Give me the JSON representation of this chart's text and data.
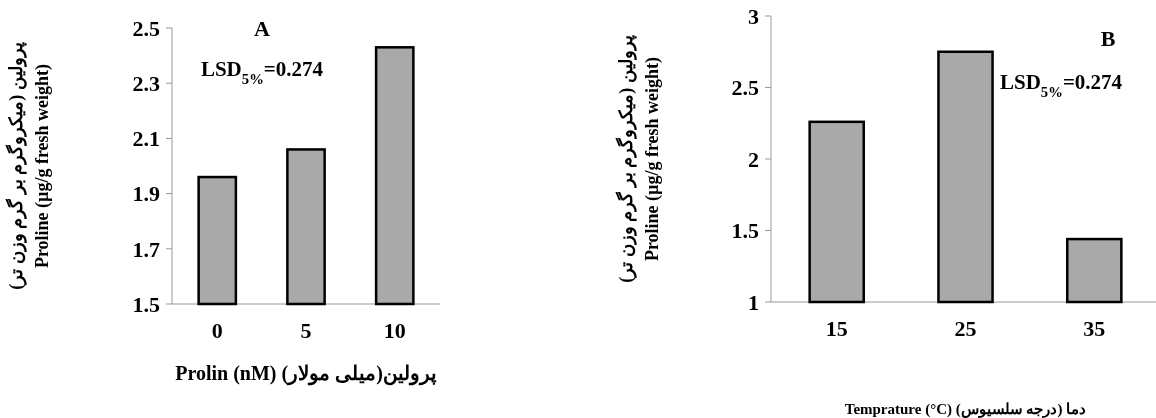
{
  "chart_data": [
    {
      "type": "bar",
      "title": "A",
      "categories": [
        "0",
        "5",
        "10"
      ],
      "values": [
        1.96,
        2.06,
        2.43
      ],
      "color": "#a9a9a9",
      "ylim": [
        1.5,
        2.5
      ],
      "yticks": [
        1.5,
        1.7,
        1.9,
        2.1,
        2.3,
        2.5
      ],
      "xlabel": "پرولین(میلی مولار) Prolin (nM)",
      "ylabel": "پرولین (میکروگرم بر گرم وزن تر)\nProline (µg/g fresh weight)",
      "annotations": [
        "LSD$_{5%}$=0.274"
      ],
      "grid": false
    },
    {
      "type": "bar",
      "title": "B",
      "categories": [
        "15",
        "25",
        "35"
      ],
      "values": [
        2.26,
        2.75,
        1.44
      ],
      "color": "#a9a9a9",
      "ylim": [
        1,
        3
      ],
      "yticks": [
        1,
        1.5,
        2,
        2.5,
        3
      ],
      "xlabel": "دما (درجه سلسیوس) Temprature (°C)",
      "ylabel": "پرولین (میکروگرم بر گرم وزن تر)\nProline (µg/g fresh weight)",
      "annotations": [
        "LSD$_{5%}$=0.274"
      ],
      "grid": false
    }
  ]
}
